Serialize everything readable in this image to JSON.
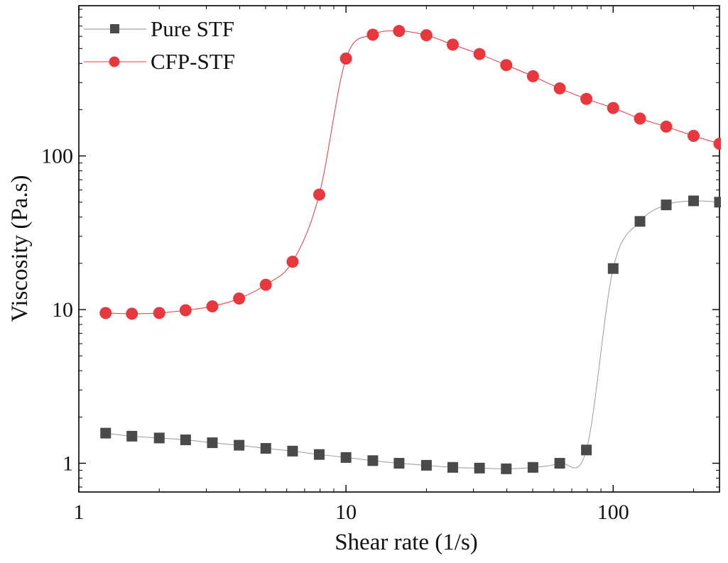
{
  "chart_data": {
    "type": "scatter",
    "title": "",
    "xlabel": "Shear rate (1/s)",
    "ylabel": "Viscosity (Pa.s)",
    "x_scale": "log",
    "y_scale": "log",
    "xlim": [
      1,
      250
    ],
    "ylim": [
      0.65,
      950
    ],
    "x_ticks": [
      {
        "value": 1,
        "label": "1"
      },
      {
        "value": 10,
        "label": "10"
      },
      {
        "value": 100,
        "label": "100"
      }
    ],
    "y_ticks": [
      {
        "value": 1,
        "label": "1"
      },
      {
        "value": 10,
        "label": "10"
      },
      {
        "value": 100,
        "label": "100"
      }
    ],
    "grid": false,
    "legend_position": "top-left",
    "series": [
      {
        "name": "Pure STF",
        "color": "#4a4a4a",
        "marker": "square",
        "x": [
          1.26,
          1.58,
          2.0,
          2.51,
          3.16,
          3.98,
          5.01,
          6.31,
          7.94,
          10.0,
          12.6,
          15.8,
          20.0,
          25.1,
          31.6,
          39.8,
          50.1,
          63.1,
          79.4,
          100,
          126,
          158,
          200,
          250
        ],
        "y": [
          1.57,
          1.5,
          1.46,
          1.42,
          1.36,
          1.31,
          1.25,
          1.2,
          1.14,
          1.09,
          1.04,
          1.0,
          0.97,
          0.94,
          0.93,
          0.92,
          0.94,
          1.0,
          1.22,
          18.5,
          37.5,
          48,
          51,
          50
        ]
      },
      {
        "name": "CFP-STF",
        "color": "#e8383d",
        "marker": "circle",
        "x": [
          1.26,
          1.58,
          2.0,
          2.51,
          3.16,
          3.98,
          5.01,
          6.31,
          7.94,
          10.0,
          12.6,
          15.8,
          20.0,
          25.1,
          31.6,
          39.8,
          50.1,
          63.1,
          79.4,
          100,
          126,
          158,
          200,
          250
        ],
        "y": [
          9.5,
          9.4,
          9.5,
          9.9,
          10.5,
          11.8,
          14.5,
          20.5,
          56,
          430,
          615,
          650,
          610,
          530,
          460,
          390,
          330,
          275,
          235,
          205,
          175,
          155,
          135,
          120
        ]
      }
    ]
  }
}
